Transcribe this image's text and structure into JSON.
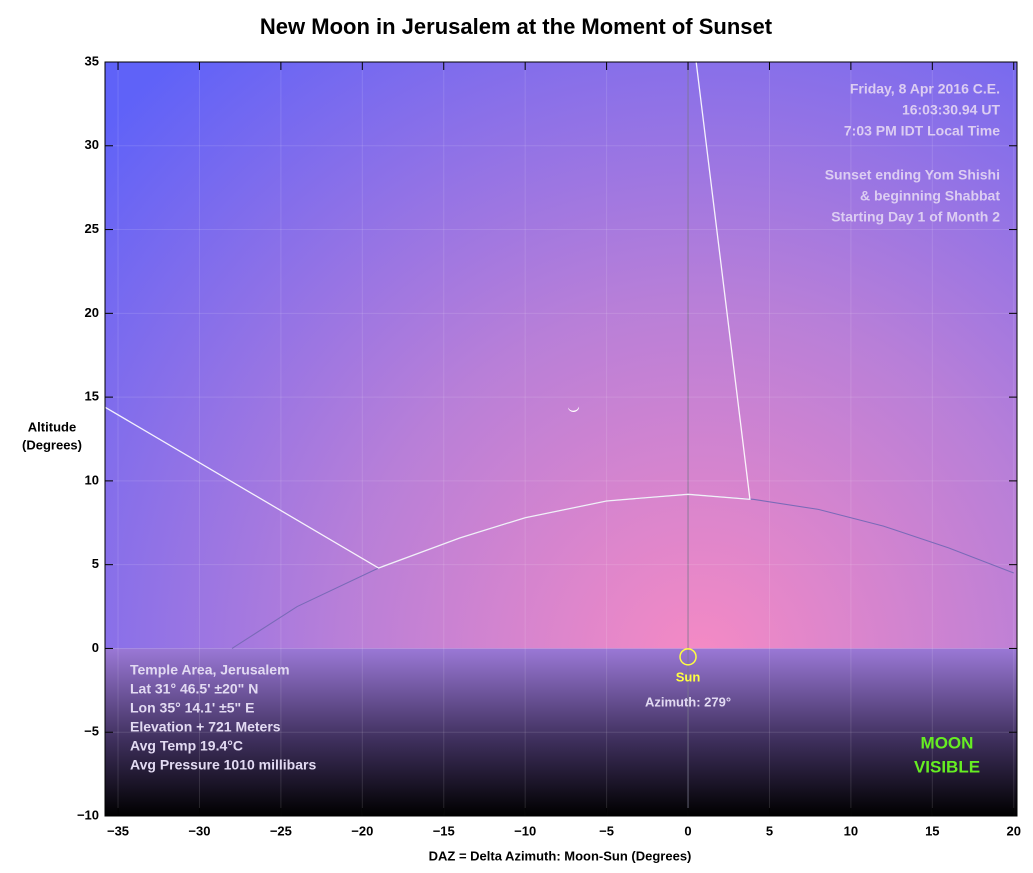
{
  "chart_data": {
    "type": "line",
    "title": "New Moon in Jerusalem at the Moment of Sunset",
    "x_label": "DAZ = Delta Azimuth: Moon-Sun (Degrees)",
    "y_label": [
      "Altitude",
      "(Degrees)"
    ],
    "xlim": [
      -35.8,
      20.2
    ],
    "ylim": [
      -10,
      35
    ],
    "xticks": [
      {
        "value": -35,
        "label": "−35"
      },
      {
        "value": -30,
        "label": "−30"
      },
      {
        "value": -25,
        "label": "−25"
      },
      {
        "value": -20,
        "label": "−20"
      },
      {
        "value": -15,
        "label": "−15"
      },
      {
        "value": -10,
        "label": "−10"
      },
      {
        "value": -5,
        "label": "−5"
      },
      0,
      5,
      10,
      15,
      20
    ],
    "yticks": [
      {
        "value": -10,
        "label": "−10"
      },
      {
        "value": -5,
        "label": "−5"
      },
      0,
      5,
      10,
      15,
      20,
      25,
      30,
      35
    ],
    "grid": true,
    "series": [
      {
        "color": "#7a6ab8",
        "x": [
          -28,
          -24,
          -19,
          -14,
          -10,
          -5,
          0,
          4,
          8,
          12,
          16,
          20
        ],
        "values": [
          0,
          2.5,
          4.8,
          6.6,
          7.8,
          8.8,
          9.2,
          8.9,
          8.3,
          7.3,
          6.0,
          4.5
        ]
      },
      {
        "color": "#ffffff",
        "x": [
          -35.8,
          -19,
          -14,
          -10,
          -5,
          0,
          3.8,
          0.5
        ],
        "values": [
          14.4,
          4.8,
          6.6,
          7.8,
          8.8,
          9.2,
          8.9,
          35
        ]
      }
    ],
    "points": [
      {
        "label": "Sun",
        "x": 0,
        "y": -0.5,
        "color": "#ffff40"
      },
      {
        "x": -7,
        "y": 14.2,
        "color": "#ffffff"
      }
    ],
    "annotations": {
      "top_right": [
        "Friday, 8 Apr 2016 C.E.",
        "16:03:30.94 UT",
        "7:03 PM IDT Local Time",
        "Sunset ending Yom Shishi",
        "& beginning Shabbat",
        "Starting Day 1 of Month 2"
      ],
      "bottom_left": [
        "Temple Area, Jerusalem",
        "Lat 31° 46.5' ±20\" N",
        "Lon 35° 14.1' ±5\" E",
        "Elevation + 721 Meters",
        "Avg Temp 19.4°C",
        "Avg Pressure 1010 millibars"
      ],
      "azimuth": "Azimuth: 279°",
      "verdict": [
        "MOON",
        "VISIBLE"
      ]
    }
  }
}
